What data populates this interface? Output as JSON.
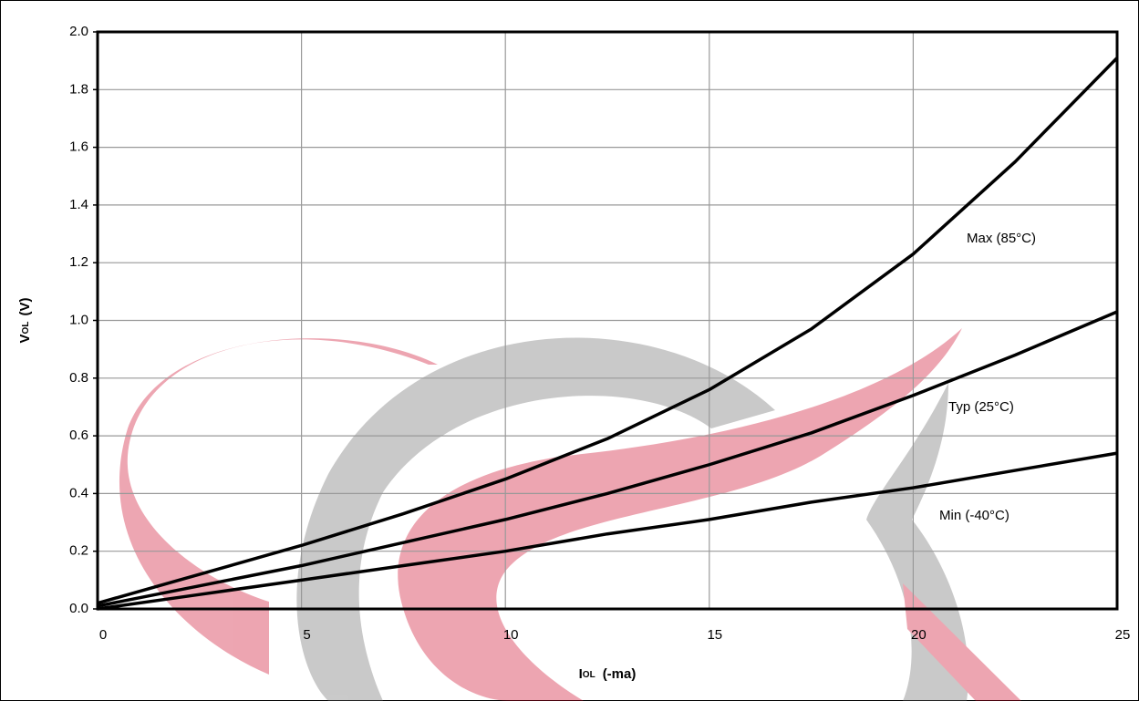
{
  "chart_data": {
    "type": "line",
    "x_label": [
      "I",
      "OL",
      "(-ma)"
    ],
    "y_label": [
      "V",
      "OL",
      "(V)"
    ],
    "x": [
      0,
      2.5,
      5,
      7.5,
      10,
      12.5,
      15,
      17.5,
      20,
      22.5,
      25
    ],
    "series": [
      {
        "name": "Max (85°C)",
        "color": "#000000",
        "values": [
          0.02,
          0.12,
          0.22,
          0.33,
          0.45,
          0.59,
          0.76,
          0.97,
          1.23,
          1.55,
          1.91
        ]
      },
      {
        "name": "Typ (25°C)",
        "color": "#000000",
        "values": [
          0.01,
          0.08,
          0.15,
          0.23,
          0.31,
          0.4,
          0.5,
          0.61,
          0.74,
          0.88,
          1.03
        ]
      },
      {
        "name": "Min (-40°C)",
        "color": "#000000",
        "values": [
          0.0,
          0.05,
          0.1,
          0.15,
          0.2,
          0.26,
          0.31,
          0.37,
          0.42,
          0.48,
          0.54
        ]
      }
    ],
    "xlim": [
      0,
      25
    ],
    "xticks": [
      0,
      5,
      10,
      15,
      20,
      25
    ],
    "ylim": [
      0,
      2
    ],
    "yticks": [
      {
        "value": 0,
        "label": "0.0"
      },
      0.2,
      0.4,
      0.6,
      0.8,
      {
        "value": 1,
        "label": "1.0"
      },
      1.2,
      1.4,
      1.6,
      1.8,
      {
        "value": 2,
        "label": "2.0"
      }
    ],
    "grid": true
  }
}
